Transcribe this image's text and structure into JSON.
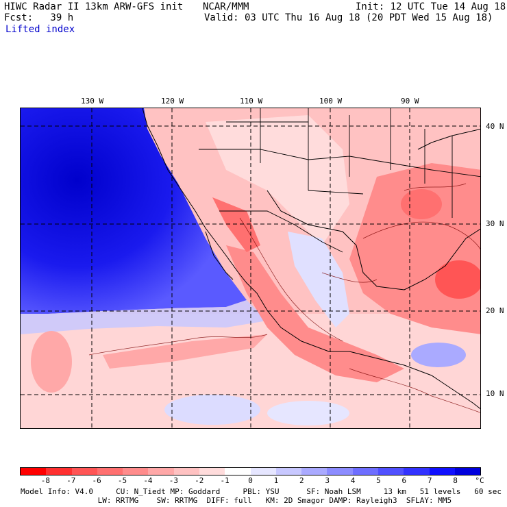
{
  "header": {
    "title": "HIWC Radar II 13km ARW-GFS init",
    "org": "NCAR/MMM",
    "fcst": "Fcst:   39 h",
    "init": "Init: 12 UTC Tue 14 Aug 18",
    "valid": "Valid: 03 UTC Thu 16 Aug 18 (20 PDT Wed 15 Aug 18)",
    "field": "Lifted index"
  },
  "map": {
    "lon_labels": [
      "130 W",
      "120 W",
      "110 W",
      "100 W",
      "90 W"
    ],
    "lat_labels": [
      "40 N",
      "30 N",
      "20 N",
      "10 N"
    ]
  },
  "colorbar": {
    "tick_labels": [
      "-8",
      "-7",
      "-6",
      "-5",
      "-4",
      "-3",
      "-2",
      "-1",
      "0",
      "1",
      "2",
      "3",
      "4",
      "5",
      "6",
      "7",
      "8"
    ],
    "unit": "°C",
    "colors": [
      "#ff0000",
      "#ff3030",
      "#ff5555",
      "#ff7070",
      "#ff8c8c",
      "#ffa8a8",
      "#ffc2c2",
      "#ffdcdc",
      "#ffffff",
      "#e6e6ff",
      "#c8c8ff",
      "#aaaaff",
      "#8c8cff",
      "#6e6eff",
      "#5050ff",
      "#3232ff",
      "#1010ff",
      "#0000dd"
    ]
  },
  "footer": {
    "line1": "Model Info: V4.0     CU: N_Tiedt MP: Goddard     PBL: YSU      SF: Noah LSM     13 km   51 levels   60 sec",
    "line2": "                 LW: RRTMG    SW: RRTMG  DIFF: full   KM: 2D Smagor DAMP: Rayleigh3  SFLAY: MM5"
  },
  "colors": {
    "ocean_stable": "#1414e6",
    "land_unstable": "#ff8c8c",
    "neutral": "#ffffff"
  }
}
